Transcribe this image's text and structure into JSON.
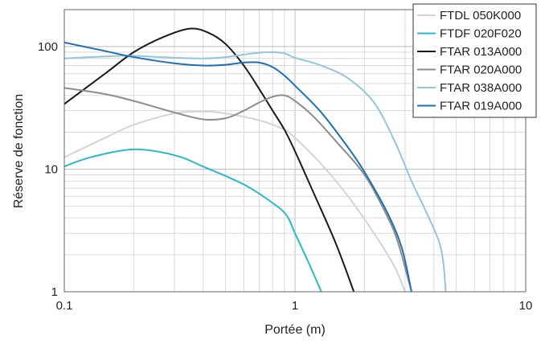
{
  "chart_data": {
    "type": "line",
    "xlabel": "Portée (m)",
    "ylabel": "Réserve de fonction",
    "xscale": "log",
    "yscale": "log",
    "xlim": [
      0.1,
      10
    ],
    "ylim": [
      1,
      200
    ],
    "x_ticks": [
      {
        "value": 0.1,
        "label": "0.1"
      },
      {
        "value": 1,
        "label": "1"
      },
      {
        "value": 10,
        "label": "10"
      }
    ],
    "y_ticks": [
      {
        "value": 1,
        "label": "1"
      },
      {
        "value": 10,
        "label": "10"
      },
      {
        "value": 100,
        "label": "100"
      }
    ],
    "grid": true,
    "legend_position": "top-right",
    "series": [
      {
        "name": "FTDL 050K000",
        "color": "#d4d4d4",
        "points": [
          [
            0.1,
            12.5
          ],
          [
            0.15,
            18
          ],
          [
            0.2,
            23
          ],
          [
            0.3,
            28.5
          ],
          [
            0.4,
            29.5
          ],
          [
            0.5,
            28.5
          ],
          [
            0.7,
            25
          ],
          [
            0.9,
            21
          ],
          [
            1.0,
            18
          ],
          [
            1.3,
            11
          ],
          [
            1.7,
            6
          ],
          [
            2.2,
            3
          ],
          [
            2.7,
            1.6
          ],
          [
            3.0,
            1
          ]
        ]
      },
      {
        "name": "FTDF 020F020",
        "color": "#2bb8c8",
        "points": [
          [
            0.1,
            10.5
          ],
          [
            0.13,
            12.5
          ],
          [
            0.2,
            14.5
          ],
          [
            0.3,
            13
          ],
          [
            0.4,
            10.5
          ],
          [
            0.6,
            7.5
          ],
          [
            0.8,
            5.3
          ],
          [
            0.92,
            4.2
          ],
          [
            1.0,
            3.0
          ],
          [
            1.15,
            1.7
          ],
          [
            1.3,
            1
          ]
        ]
      },
      {
        "name": "FTAR 013A000",
        "color": "#1a1a1a",
        "points": [
          [
            0.1,
            34
          ],
          [
            0.15,
            60
          ],
          [
            0.2,
            90
          ],
          [
            0.27,
            120
          ],
          [
            0.35,
            140
          ],
          [
            0.42,
            130
          ],
          [
            0.5,
            105
          ],
          [
            0.6,
            70
          ],
          [
            0.7,
            45
          ],
          [
            0.8,
            30
          ],
          [
            0.9,
            21
          ],
          [
            1.0,
            14
          ],
          [
            1.2,
            6.5
          ],
          [
            1.5,
            2.5
          ],
          [
            1.8,
            1
          ]
        ]
      },
      {
        "name": "FTAR 020A000",
        "color": "#8c8c8c",
        "points": [
          [
            0.1,
            46
          ],
          [
            0.15,
            41
          ],
          [
            0.2,
            36
          ],
          [
            0.3,
            29
          ],
          [
            0.4,
            25.5
          ],
          [
            0.5,
            26
          ],
          [
            0.6,
            30
          ],
          [
            0.7,
            35
          ],
          [
            0.8,
            39
          ],
          [
            0.9,
            40
          ],
          [
            1.0,
            36
          ],
          [
            1.2,
            27
          ],
          [
            1.5,
            17
          ],
          [
            2.0,
            9
          ],
          [
            2.5,
            4.2
          ],
          [
            2.8,
            2.5
          ],
          [
            3.2,
            1
          ]
        ]
      },
      {
        "name": "FTAR 038A000",
        "color": "#92c5de",
        "points": [
          [
            0.1,
            80
          ],
          [
            0.15,
            83
          ],
          [
            0.2,
            84
          ],
          [
            0.3,
            81
          ],
          [
            0.4,
            80
          ],
          [
            0.5,
            82
          ],
          [
            0.6,
            86
          ],
          [
            0.7,
            89
          ],
          [
            0.8,
            90
          ],
          [
            0.9,
            88
          ],
          [
            1.0,
            81
          ],
          [
            1.3,
            70
          ],
          [
            1.7,
            55
          ],
          [
            2.2,
            35
          ],
          [
            2.7,
            17
          ],
          [
            3.2,
            8
          ],
          [
            3.7,
            4.5
          ],
          [
            4.2,
            2.6
          ],
          [
            4.4,
            1.7
          ],
          [
            4.5,
            1
          ]
        ]
      },
      {
        "name": "FTAR 019A000",
        "color": "#1f6fb4",
        "points": [
          [
            0.1,
            108
          ],
          [
            0.15,
            92
          ],
          [
            0.2,
            82
          ],
          [
            0.3,
            73
          ],
          [
            0.4,
            70
          ],
          [
            0.5,
            71
          ],
          [
            0.6,
            74
          ],
          [
            0.7,
            74
          ],
          [
            0.8,
            68
          ],
          [
            0.9,
            58
          ],
          [
            1.0,
            48
          ],
          [
            1.3,
            29
          ],
          [
            1.7,
            15
          ],
          [
            2.0,
            9.5
          ],
          [
            2.5,
            4.5
          ],
          [
            2.9,
            2.3
          ],
          [
            3.2,
            1
          ]
        ]
      }
    ]
  }
}
